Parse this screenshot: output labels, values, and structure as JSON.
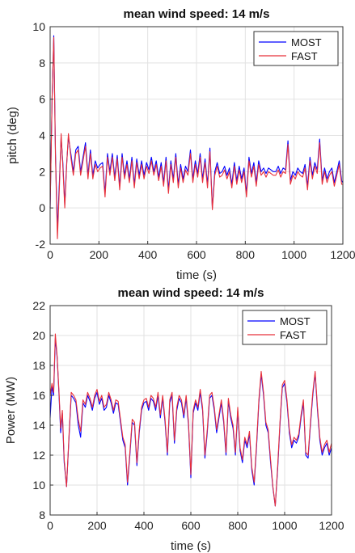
{
  "chart_data": [
    {
      "type": "line",
      "title": "mean wind speed: 14 m/s",
      "xlabel": "time (s)",
      "ylabel": "pitch (deg)",
      "xlim": [
        0,
        1200
      ],
      "ylim": [
        -2,
        10
      ],
      "xticks": [
        0,
        200,
        400,
        600,
        800,
        1000,
        1200
      ],
      "yticks": [
        -2,
        0,
        2,
        4,
        6,
        8,
        10
      ],
      "grid": true,
      "legend_position": "top-right",
      "series": [
        {
          "name": "MOST",
          "color": "#0000ff",
          "x": [
            0,
            8,
            15,
            22,
            30,
            38,
            45,
            52,
            60,
            68,
            75,
            85,
            95,
            105,
            115,
            125,
            135,
            145,
            155,
            165,
            175,
            185,
            195,
            205,
            215,
            225,
            235,
            245,
            255,
            265,
            275,
            285,
            295,
            305,
            315,
            325,
            335,
            345,
            355,
            365,
            375,
            385,
            395,
            405,
            415,
            425,
            435,
            445,
            455,
            465,
            475,
            485,
            495,
            505,
            515,
            525,
            535,
            545,
            555,
            565,
            575,
            585,
            595,
            605,
            615,
            625,
            635,
            645,
            655,
            665,
            675,
            685,
            695,
            705,
            715,
            725,
            735,
            745,
            755,
            765,
            775,
            785,
            795,
            805,
            815,
            825,
            835,
            845,
            855,
            865,
            875,
            885,
            895,
            905,
            915,
            925,
            935,
            945,
            955,
            965,
            975,
            985,
            995,
            1005,
            1015,
            1025,
            1035,
            1045,
            1055,
            1065,
            1075,
            1085,
            1095,
            1105,
            1115,
            1125,
            1135,
            1145,
            1155,
            1165,
            1175,
            1185,
            1195,
            1200
          ],
          "y": [
            0.0,
            6.0,
            9.5,
            3.0,
            -1.2,
            1.5,
            3.9,
            2.5,
            0.2,
            2.5,
            3.9,
            3.0,
            2.0,
            3.2,
            3.4,
            2.0,
            2.8,
            3.6,
            1.8,
            3.2,
            1.8,
            2.6,
            2.2,
            2.4,
            2.5,
            0.8,
            3.0,
            2.0,
            3.0,
            1.7,
            2.9,
            1.2,
            3.0,
            1.8,
            2.6,
            1.6,
            2.8,
            1.3,
            2.7,
            1.8,
            2.6,
            1.8,
            2.5,
            2.1,
            2.8,
            2.0,
            2.6,
            1.7,
            2.5,
            1.4,
            2.8,
            1.0,
            2.6,
            1.6,
            3.0,
            1.3,
            2.4,
            1.6,
            2.3,
            2.0,
            3.2,
            1.6,
            2.6,
            1.9,
            3.0,
            1.6,
            2.7,
            1.3,
            3.3,
            0.0,
            2.0,
            2.5,
            1.9,
            2.0,
            2.3,
            1.8,
            2.2,
            1.3,
            2.5,
            1.5,
            2.3,
            1.6,
            2.2,
            0.8,
            2.8,
            1.9,
            2.5,
            1.4,
            2.6,
            2.0,
            2.2,
            1.9,
            2.2,
            2.1,
            2.0,
            2.0,
            2.3,
            1.9,
            2.2,
            2.1,
            3.7,
            1.5,
            2.0,
            1.8,
            2.2,
            2.0,
            1.9,
            2.4,
            1.2,
            2.8,
            1.8,
            2.5,
            2.1,
            3.8,
            1.5,
            2.2,
            1.6,
            2.0,
            2.2,
            1.4,
            2.0,
            2.6,
            1.5,
            1.4
          ]
        },
        {
          "name": "FAST",
          "color": "#e8303a",
          "x": [
            0,
            8,
            15,
            22,
            30,
            38,
            45,
            52,
            60,
            68,
            75,
            85,
            95,
            105,
            115,
            125,
            135,
            145,
            155,
            165,
            175,
            185,
            195,
            205,
            215,
            225,
            235,
            245,
            255,
            265,
            275,
            285,
            295,
            305,
            315,
            325,
            335,
            345,
            355,
            365,
            375,
            385,
            395,
            405,
            415,
            425,
            435,
            445,
            455,
            465,
            475,
            485,
            495,
            505,
            515,
            525,
            535,
            545,
            555,
            565,
            575,
            585,
            595,
            605,
            615,
            625,
            635,
            645,
            655,
            665,
            675,
            685,
            695,
            705,
            715,
            725,
            735,
            745,
            755,
            765,
            775,
            785,
            795,
            805,
            815,
            825,
            835,
            845,
            855,
            865,
            875,
            885,
            895,
            905,
            915,
            925,
            935,
            945,
            955,
            965,
            975,
            985,
            995,
            1005,
            1015,
            1025,
            1035,
            1045,
            1055,
            1065,
            1075,
            1085,
            1095,
            1105,
            1115,
            1125,
            1135,
            1145,
            1155,
            1165,
            1175,
            1185,
            1195,
            1200
          ],
          "y": [
            0.0,
            6.0,
            9.4,
            2.8,
            -1.7,
            1.2,
            4.1,
            2.3,
            0.0,
            2.4,
            4.1,
            2.8,
            1.8,
            3.0,
            3.2,
            1.8,
            2.6,
            3.4,
            1.6,
            3.0,
            1.6,
            2.4,
            2.0,
            2.2,
            2.3,
            0.6,
            2.8,
            1.8,
            2.8,
            1.5,
            2.7,
            1.0,
            2.8,
            1.6,
            2.4,
            1.4,
            2.6,
            1.1,
            2.5,
            1.6,
            2.4,
            1.6,
            2.3,
            1.9,
            2.6,
            1.8,
            2.4,
            1.5,
            2.3,
            1.2,
            2.6,
            0.8,
            2.4,
            1.4,
            2.8,
            1.1,
            2.2,
            1.4,
            2.1,
            1.8,
            3.0,
            1.4,
            2.4,
            1.7,
            2.8,
            1.4,
            2.5,
            1.1,
            3.1,
            -0.1,
            1.8,
            2.3,
            1.7,
            1.8,
            2.1,
            1.6,
            2.0,
            1.1,
            2.3,
            1.3,
            2.1,
            1.4,
            2.0,
            0.6,
            2.6,
            1.7,
            2.3,
            1.2,
            2.4,
            1.8,
            2.0,
            1.7,
            2.0,
            1.9,
            1.8,
            1.8,
            2.1,
            1.7,
            2.0,
            1.9,
            3.5,
            1.3,
            1.8,
            1.6,
            2.0,
            1.8,
            1.7,
            2.2,
            1.0,
            2.6,
            1.6,
            2.3,
            1.9,
            3.6,
            1.3,
            2.0,
            1.4,
            1.8,
            2.0,
            1.2,
            1.8,
            2.4,
            1.3,
            1.3
          ]
        }
      ]
    },
    {
      "type": "line",
      "title": "mean wind speed: 14 m/s",
      "xlabel": "time (s)",
      "ylabel": "Power (MW)",
      "xlim": [
        0,
        1200
      ],
      "ylim": [
        8,
        22
      ],
      "xticks": [
        0,
        200,
        400,
        600,
        800,
        1000,
        1200
      ],
      "yticks": [
        8,
        10,
        12,
        14,
        16,
        18,
        20,
        22
      ],
      "grid": true,
      "legend_position": "top-right",
      "series": [
        {
          "name": "MOST",
          "color": "#0000ff",
          "x": [
            0,
            8,
            15,
            22,
            30,
            38,
            45,
            52,
            60,
            70,
            80,
            90,
            100,
            110,
            120,
            130,
            140,
            150,
            160,
            170,
            180,
            190,
            200,
            210,
            220,
            230,
            240,
            250,
            260,
            270,
            280,
            290,
            300,
            310,
            320,
            330,
            340,
            350,
            360,
            370,
            380,
            390,
            400,
            410,
            420,
            430,
            440,
            450,
            460,
            470,
            480,
            490,
            500,
            510,
            520,
            530,
            540,
            550,
            560,
            570,
            580,
            590,
            600,
            610,
            620,
            630,
            640,
            650,
            660,
            670,
            680,
            690,
            700,
            710,
            720,
            730,
            740,
            750,
            760,
            770,
            780,
            790,
            800,
            810,
            820,
            830,
            840,
            850,
            860,
            870,
            880,
            890,
            900,
            910,
            920,
            930,
            940,
            950,
            960,
            970,
            980,
            990,
            1000,
            1010,
            1020,
            1030,
            1040,
            1050,
            1060,
            1070,
            1080,
            1090,
            1100,
            1110,
            1120,
            1130,
            1140,
            1150,
            1160,
            1170,
            1180,
            1190,
            1200
          ],
          "y": [
            14.5,
            16.6,
            16.0,
            19.8,
            18.5,
            16.0,
            13.5,
            14.8,
            11.5,
            9.9,
            13.0,
            16.0,
            15.8,
            15.5,
            14.0,
            13.2,
            15.5,
            15.2,
            16.0,
            15.6,
            15.0,
            15.8,
            16.2,
            15.4,
            15.8,
            15.0,
            15.2,
            16.0,
            15.5,
            14.8,
            15.5,
            15.4,
            14.2,
            13.0,
            12.5,
            10.0,
            12.0,
            14.2,
            14.0,
            11.3,
            13.5,
            15.0,
            15.5,
            15.6,
            15.0,
            15.8,
            15.6,
            15.0,
            16.0,
            14.5,
            15.8,
            14.2,
            12.0,
            15.5,
            16.0,
            12.8,
            15.0,
            15.8,
            15.5,
            14.5,
            15.8,
            14.0,
            10.5,
            14.8,
            15.5,
            15.0,
            16.2,
            15.0,
            11.8,
            13.5,
            15.8,
            16.0,
            15.0,
            13.5,
            14.5,
            15.5,
            14.2,
            12.0,
            15.6,
            14.5,
            13.8,
            12.0,
            15.0,
            12.3,
            11.5,
            13.0,
            12.5,
            13.4,
            11.0,
            10.0,
            12.5,
            15.5,
            17.4,
            16.0,
            14.0,
            13.5,
            11.5,
            9.8,
            8.6,
            11.0,
            14.0,
            16.5,
            16.8,
            15.5,
            13.5,
            12.5,
            13.0,
            12.8,
            13.2,
            14.5,
            15.5,
            12.0,
            11.8,
            14.0,
            16.0,
            17.5,
            15.0,
            13.0,
            12.0,
            12.5,
            12.8,
            12.0,
            12.5
          ]
        },
        {
          "name": "FAST",
          "color": "#e8303a",
          "x": [
            0,
            8,
            15,
            22,
            30,
            38,
            45,
            52,
            60,
            70,
            80,
            90,
            100,
            110,
            120,
            130,
            140,
            150,
            160,
            170,
            180,
            190,
            200,
            210,
            220,
            230,
            240,
            250,
            260,
            270,
            280,
            290,
            300,
            310,
            320,
            330,
            340,
            350,
            360,
            370,
            380,
            390,
            400,
            410,
            420,
            430,
            440,
            450,
            460,
            470,
            480,
            490,
            500,
            510,
            520,
            530,
            540,
            550,
            560,
            570,
            580,
            590,
            600,
            610,
            620,
            630,
            640,
            650,
            660,
            670,
            680,
            690,
            700,
            710,
            720,
            730,
            740,
            750,
            760,
            770,
            780,
            790,
            800,
            810,
            820,
            830,
            840,
            850,
            860,
            870,
            880,
            890,
            900,
            910,
            920,
            930,
            940,
            950,
            960,
            970,
            980,
            990,
            1000,
            1010,
            1020,
            1030,
            1040,
            1050,
            1060,
            1070,
            1080,
            1090,
            1100,
            1110,
            1120,
            1130,
            1140,
            1150,
            1160,
            1170,
            1180,
            1190,
            1200
          ],
          "y": [
            16.0,
            16.8,
            16.2,
            20.1,
            18.6,
            16.2,
            13.8,
            15.0,
            11.7,
            9.9,
            13.2,
            16.2,
            16.0,
            15.7,
            14.4,
            13.6,
            15.7,
            15.4,
            16.2,
            15.8,
            15.2,
            16.0,
            16.4,
            15.6,
            16.0,
            15.2,
            15.4,
            16.2,
            15.7,
            15.0,
            15.7,
            15.6,
            14.4,
            13.2,
            12.7,
            10.2,
            12.2,
            14.4,
            14.2,
            11.5,
            13.7,
            15.2,
            15.7,
            15.8,
            15.2,
            16.0,
            15.8,
            15.2,
            16.2,
            14.7,
            16.0,
            14.4,
            12.2,
            15.7,
            16.2,
            13.0,
            15.2,
            16.0,
            15.7,
            14.7,
            16.0,
            14.2,
            10.7,
            15.0,
            15.7,
            15.2,
            16.4,
            15.2,
            12.0,
            13.7,
            16.0,
            16.2,
            15.2,
            13.7,
            14.7,
            15.7,
            14.4,
            12.2,
            15.8,
            14.7,
            14.0,
            12.2,
            15.2,
            12.5,
            11.7,
            13.2,
            12.7,
            13.6,
            11.2,
            10.2,
            12.7,
            15.7,
            17.6,
            16.2,
            14.2,
            13.7,
            11.7,
            9.9,
            8.6,
            11.2,
            14.2,
            16.7,
            17.0,
            15.7,
            13.7,
            12.7,
            13.2,
            13.0,
            13.4,
            14.7,
            15.7,
            12.2,
            12.0,
            14.2,
            16.2,
            17.6,
            15.2,
            13.2,
            12.2,
            12.7,
            13.0,
            12.2,
            12.8
          ]
        }
      ]
    }
  ]
}
